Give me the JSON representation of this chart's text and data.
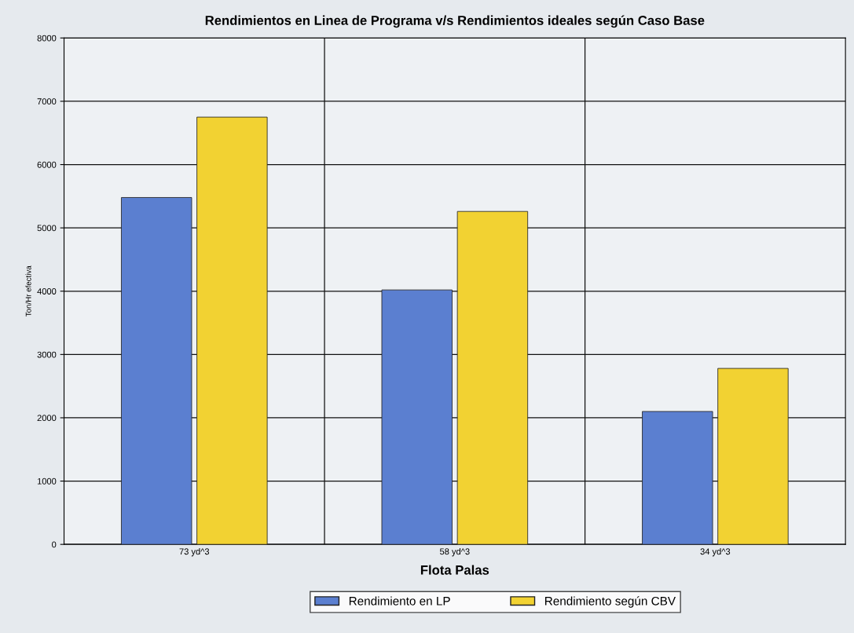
{
  "chart_data": {
    "type": "bar",
    "title": "Rendimientos en Linea de Programa v/s Rendimientos ideales según Caso Base",
    "xlabel": "Flota Palas",
    "ylabel": "Ton/Hr efectiva",
    "categories": [
      "73 yd^3",
      "58 yd^3",
      "34 yd^3"
    ],
    "series": [
      {
        "name": "Rendimiento en LP",
        "color": "#5b7fd0",
        "values": [
          5480,
          4020,
          2100
        ]
      },
      {
        "name": "Rendimiento según CBV",
        "color": "#f2d232",
        "values": [
          6750,
          5260,
          2780
        ]
      }
    ],
    "ylim": [
      0,
      8000
    ],
    "yticks": [
      0,
      1000,
      2000,
      3000,
      4000,
      5000,
      6000,
      7000,
      8000
    ],
    "grid": true,
    "legend": "bottom"
  }
}
